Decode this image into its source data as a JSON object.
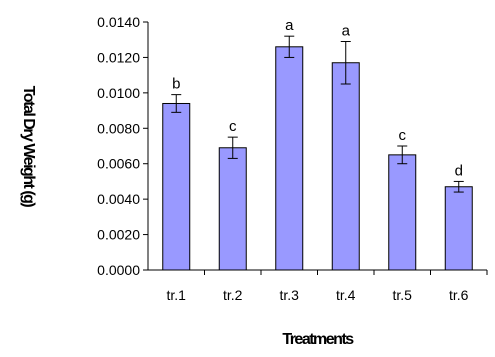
{
  "chart_data": {
    "type": "bar",
    "title": "",
    "xlabel": "Treatments",
    "ylabel": "Total Dry Weight (g)",
    "ylim": [
      0,
      0.014
    ],
    "yticks": [
      "0.0000",
      "0.0020",
      "0.0040",
      "0.0060",
      "0.0080",
      "0.0100",
      "0.0120",
      "0.0140"
    ],
    "categories": [
      "tr.1",
      "tr.2",
      "tr.3",
      "tr.4",
      "tr.5",
      "tr.6"
    ],
    "values": [
      0.0094,
      0.0069,
      0.0126,
      0.0117,
      0.0065,
      0.0047
    ],
    "errors": [
      0.0005,
      0.0006,
      0.0006,
      0.0012,
      0.0005,
      0.0003
    ],
    "significance_labels": [
      "b",
      "c",
      "a",
      "a",
      "c",
      "d"
    ],
    "bar_color": "#9999ff",
    "bar_edge_color": "#000000",
    "grid": false,
    "legend": "none"
  }
}
